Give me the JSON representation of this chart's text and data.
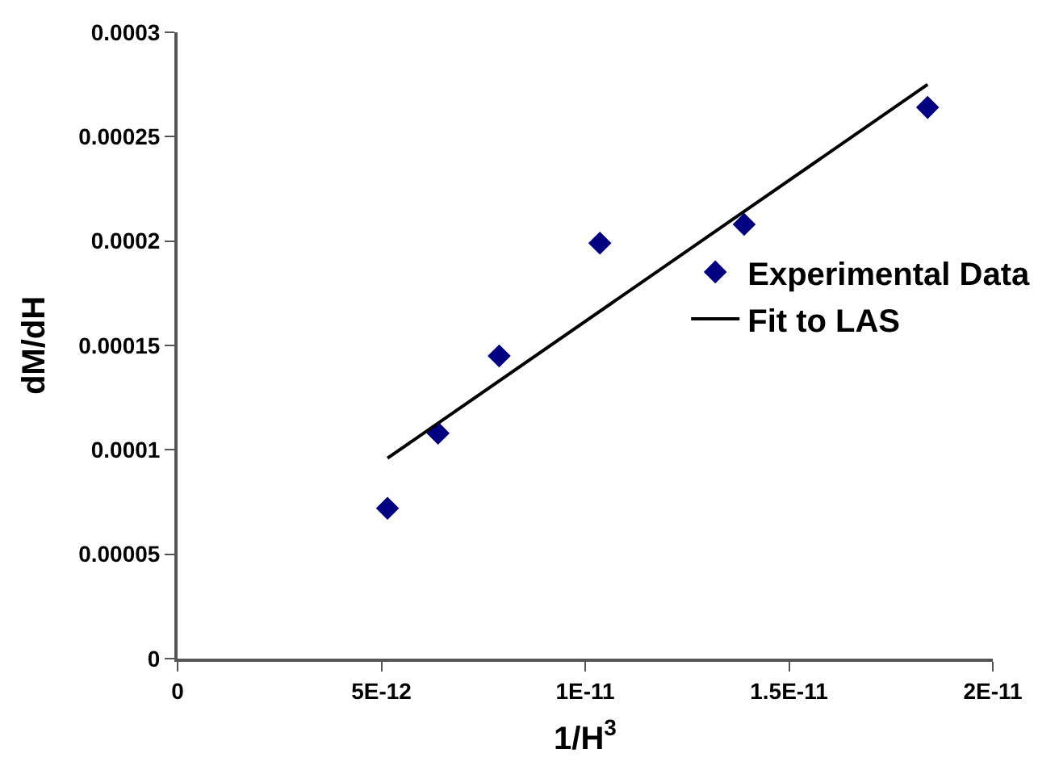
{
  "chart_data": {
    "type": "scatter",
    "xlabel": "1/H$^{3}$",
    "ylabel": "dM/dH",
    "xlim": [
      0,
      2e-11
    ],
    "xticks": [
      0,
      {
        "value": 5e-12,
        "label": "5E-12"
      },
      {
        "value": 1e-11,
        "label": "1E-11"
      },
      {
        "value": 1.5e-11,
        "label": "1.5E-11"
      },
      {
        "value": 2e-11,
        "label": "2E-11"
      }
    ],
    "ylim": [
      0,
      0.0003
    ],
    "yticks": [
      0,
      {
        "value": 5e-05,
        "label": "0.00005"
      },
      0.0001,
      0.00015,
      0.0002,
      0.00025,
      0.0003
    ],
    "legend": "right",
    "series": [
      {
        "name": "Experimental Data",
        "marker": "diamond",
        "color": "#000080",
        "x": [
          5.15e-12,
          6.39e-12,
          7.89e-12,
          1.036e-11,
          1.39e-11,
          1.84e-11
        ],
        "values": [
          7.2e-05,
          0.000108,
          0.000145,
          0.000199,
          0.000208,
          0.000264
        ]
      },
      {
        "name": "Fit to LAS",
        "type": "line",
        "marker": "none",
        "line_style": "solid",
        "color": "#000000",
        "x": [
          5.15e-12,
          1.84e-11
        ],
        "values": [
          9.6e-05,
          0.000275
        ]
      }
    ]
  }
}
